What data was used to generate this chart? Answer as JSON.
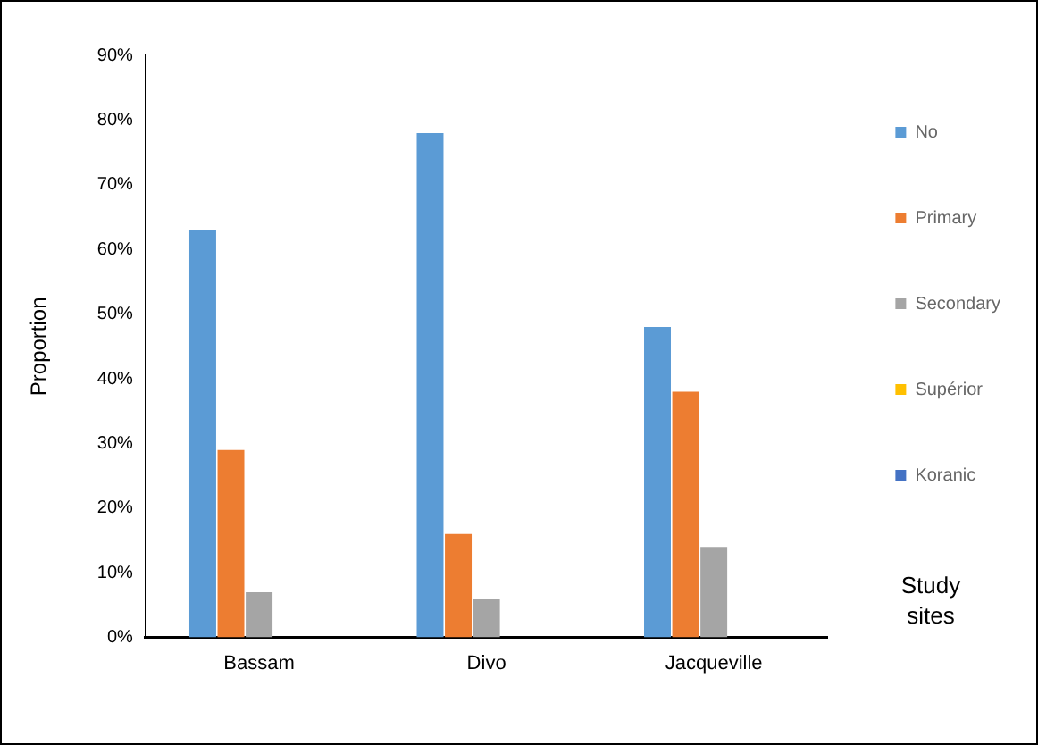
{
  "chart_data": {
    "type": "bar",
    "categories": [
      "Bassam",
      "Divo",
      "Jacqueville"
    ],
    "xlabel": "Study sites",
    "ylabel": "Proportion",
    "series": [
      {
        "name": "No",
        "color": "#5b9bd5",
        "values": [
          63,
          78,
          48
        ]
      },
      {
        "name": "Primary",
        "color": "#ed7d31",
        "values": [
          29,
          16,
          38
        ]
      },
      {
        "name": "Secondary",
        "color": "#a5a5a5",
        "values": [
          7,
          6,
          14
        ]
      },
      {
        "name": "Supérior",
        "color": "#ffc000",
        "values": [
          0,
          0,
          0
        ]
      },
      {
        "name": "Koranic",
        "color": "#4472c4",
        "values": [
          0,
          0,
          0
        ]
      }
    ],
    "ylim": [
      0,
      90
    ],
    "yticks": [
      {
        "value": 0,
        "label": "0%"
      },
      {
        "value": 10,
        "label": "10%"
      },
      {
        "value": 20,
        "label": "20%"
      },
      {
        "value": 30,
        "label": "30%"
      },
      {
        "value": 40,
        "label": "40%"
      },
      {
        "value": 50,
        "label": "50%"
      },
      {
        "value": 60,
        "label": "60%"
      },
      {
        "value": 70,
        "label": "70%"
      },
      {
        "value": 80,
        "label": "80%"
      },
      {
        "value": 90,
        "label": "90%"
      }
    ],
    "grid": false,
    "legend": "right"
  }
}
